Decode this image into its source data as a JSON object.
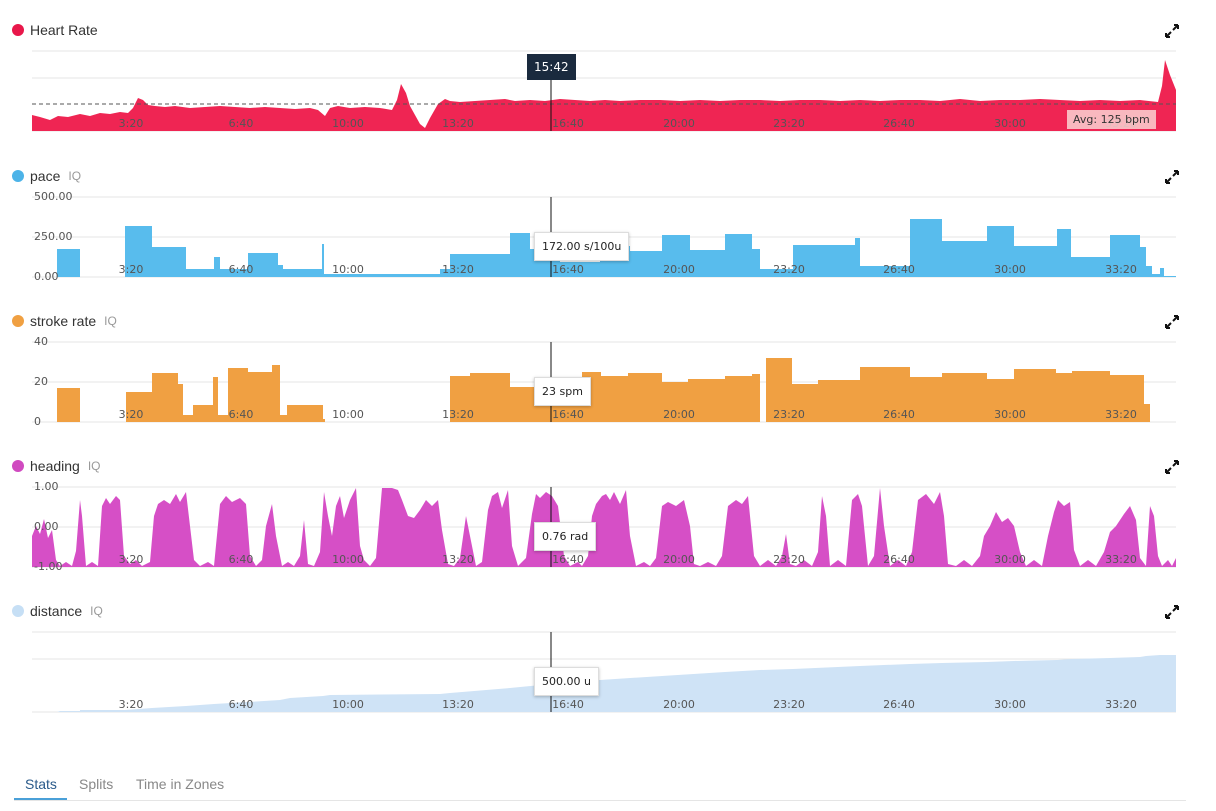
{
  "cursor_time": "15:42",
  "x_ticks": [
    "3:20",
    "6:40",
    "10:00",
    "13:20",
    "16:40",
    "20:00",
    "23:20",
    "26:40",
    "30:00",
    "33:20"
  ],
  "icons": {
    "expand": "expand-arrows-icon",
    "legend": "legend-dot-icon"
  },
  "panels": [
    {
      "key": "heart_rate",
      "title": "Heart Rate",
      "iq": "",
      "color": "#e8174a",
      "y_labels": [],
      "tooltip": "",
      "avg_label": "Avg: 125 bpm"
    },
    {
      "key": "pace",
      "title": "pace",
      "iq": "IQ",
      "color": "#4cb3e8",
      "y_labels": [
        "500.00",
        "250.00",
        "0.00"
      ],
      "tooltip": "172.00 s/100u",
      "avg_label": ""
    },
    {
      "key": "stroke_rate",
      "title": "stroke rate",
      "iq": "IQ",
      "color": "#f0a042",
      "y_labels": [
        "40",
        "20",
        "0"
      ],
      "tooltip": "23 spm",
      "avg_label": ""
    },
    {
      "key": "heading",
      "title": "heading",
      "iq": "IQ",
      "color": "#d04ac0",
      "y_labels": [
        "1.00",
        "0.00",
        "-1.00"
      ],
      "tooltip": "0.76 rad",
      "avg_label": ""
    },
    {
      "key": "distance",
      "title": "distance",
      "iq": "IQ",
      "color": "#c6dff5",
      "y_labels": [],
      "tooltip": "500.00 u",
      "avg_label": ""
    }
  ],
  "tabs": [
    {
      "label": "Stats",
      "active": true
    },
    {
      "label": "Splits",
      "active": false
    },
    {
      "label": "Time in Zones",
      "active": false
    }
  ]
}
